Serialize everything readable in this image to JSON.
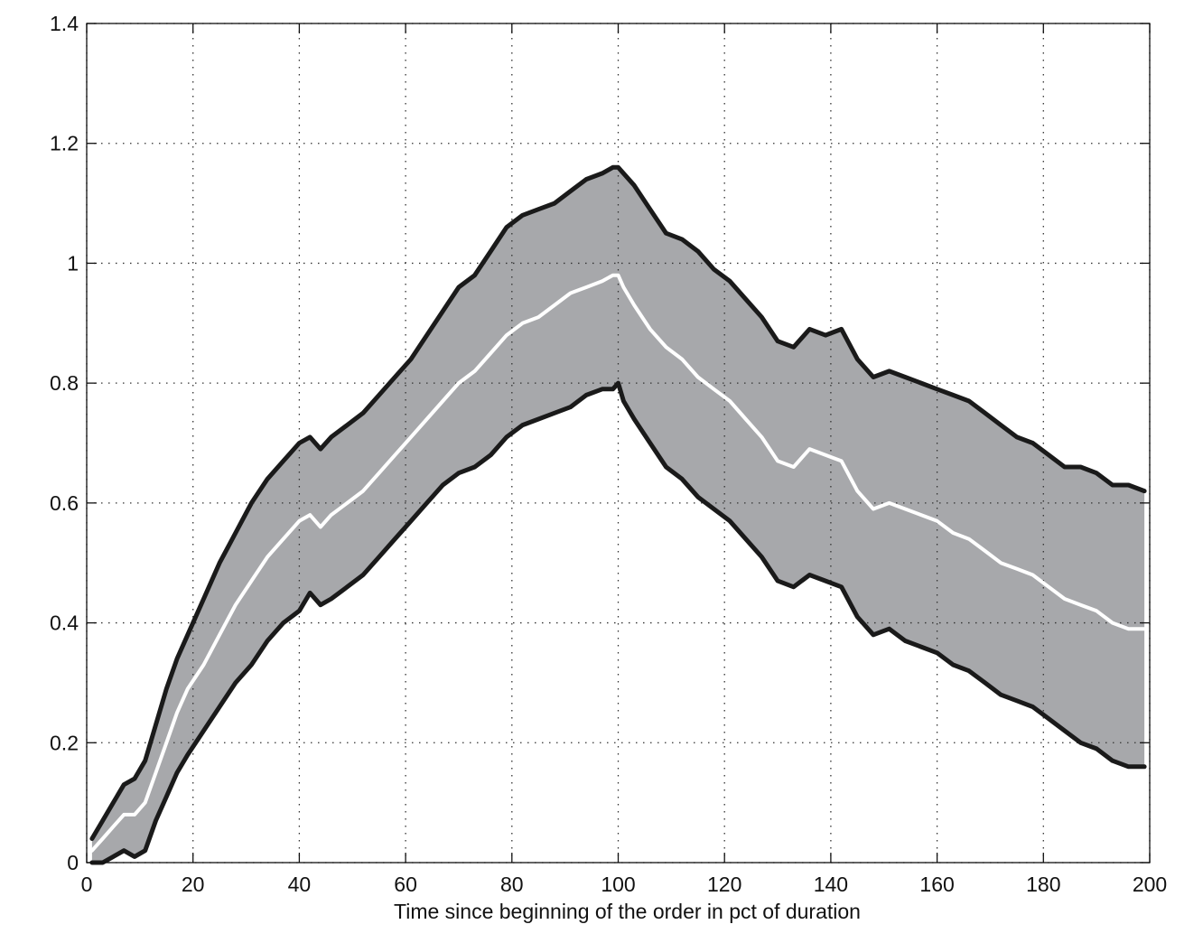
{
  "chart_data": {
    "type": "area",
    "title": "",
    "xlabel": "Time since beginning of the order in pct of duration",
    "ylabel": "",
    "xlim": [
      0,
      200
    ],
    "ylim": [
      0,
      1.4
    ],
    "xticks": [
      0,
      20,
      40,
      60,
      80,
      100,
      120,
      140,
      160,
      180,
      200
    ],
    "yticks": [
      0,
      0.2,
      0.4,
      0.6,
      0.8,
      1,
      1.2,
      1.4
    ],
    "xtick_labels": [
      "0",
      "20",
      "40",
      "60",
      "80",
      "100",
      "120",
      "140",
      "160",
      "180",
      "200"
    ],
    "ytick_labels": [
      "0",
      "0.2",
      "0.4",
      "0.6",
      "0.8",
      "1",
      "1.2",
      "1.4"
    ],
    "grid": true,
    "legend": "none",
    "x": [
      1,
      3,
      5,
      7,
      9,
      11,
      13,
      15,
      17,
      19,
      22,
      25,
      28,
      31,
      34,
      37,
      40,
      42,
      44,
      46,
      49,
      52,
      55,
      58,
      61,
      64,
      67,
      70,
      73,
      76,
      79,
      82,
      85,
      88,
      91,
      94,
      97,
      99,
      100,
      101,
      103,
      106,
      109,
      112,
      115,
      118,
      121,
      124,
      127,
      130,
      133,
      136,
      139,
      142,
      145,
      148,
      151,
      154,
      157,
      160,
      163,
      166,
      169,
      172,
      175,
      178,
      181,
      184,
      187,
      190,
      193,
      196,
      199
    ],
    "colors": {
      "band_fill": "#a7a8ab",
      "band_edge": "#1a1a1a",
      "mean_line": "#ffffff"
    },
    "series": [
      {
        "role": "upper",
        "values": [
          0.04,
          0.07,
          0.1,
          0.13,
          0.14,
          0.17,
          0.23,
          0.29,
          0.34,
          0.38,
          0.44,
          0.5,
          0.55,
          0.6,
          0.64,
          0.67,
          0.7,
          0.71,
          0.69,
          0.71,
          0.73,
          0.75,
          0.78,
          0.81,
          0.84,
          0.88,
          0.92,
          0.96,
          0.98,
          1.02,
          1.06,
          1.08,
          1.09,
          1.1,
          1.12,
          1.14,
          1.15,
          1.16,
          1.16,
          1.15,
          1.13,
          1.09,
          1.05,
          1.04,
          1.02,
          0.99,
          0.97,
          0.94,
          0.91,
          0.87,
          0.86,
          0.89,
          0.88,
          0.89,
          0.84,
          0.81,
          0.82,
          0.81,
          0.8,
          0.79,
          0.78,
          0.77,
          0.75,
          0.73,
          0.71,
          0.7,
          0.68,
          0.66,
          0.66,
          0.65,
          0.63,
          0.63,
          0.62
        ]
      },
      {
        "role": "mean",
        "values": [
          0.02,
          0.04,
          0.06,
          0.08,
          0.08,
          0.1,
          0.15,
          0.2,
          0.25,
          0.29,
          0.33,
          0.38,
          0.43,
          0.47,
          0.51,
          0.54,
          0.57,
          0.58,
          0.56,
          0.58,
          0.6,
          0.62,
          0.65,
          0.68,
          0.71,
          0.74,
          0.77,
          0.8,
          0.82,
          0.85,
          0.88,
          0.9,
          0.91,
          0.93,
          0.95,
          0.96,
          0.97,
          0.98,
          0.98,
          0.96,
          0.93,
          0.89,
          0.86,
          0.84,
          0.81,
          0.79,
          0.77,
          0.74,
          0.71,
          0.67,
          0.66,
          0.69,
          0.68,
          0.67,
          0.62,
          0.59,
          0.6,
          0.59,
          0.58,
          0.57,
          0.55,
          0.54,
          0.52,
          0.5,
          0.49,
          0.48,
          0.46,
          0.44,
          0.43,
          0.42,
          0.4,
          0.39,
          0.39
        ]
      },
      {
        "role": "lower",
        "values": [
          0.0,
          0.0,
          0.01,
          0.02,
          0.01,
          0.02,
          0.07,
          0.11,
          0.15,
          0.18,
          0.22,
          0.26,
          0.3,
          0.33,
          0.37,
          0.4,
          0.42,
          0.45,
          0.43,
          0.44,
          0.46,
          0.48,
          0.51,
          0.54,
          0.57,
          0.6,
          0.63,
          0.65,
          0.66,
          0.68,
          0.71,
          0.73,
          0.74,
          0.75,
          0.76,
          0.78,
          0.79,
          0.79,
          0.8,
          0.77,
          0.74,
          0.7,
          0.66,
          0.64,
          0.61,
          0.59,
          0.57,
          0.54,
          0.51,
          0.47,
          0.46,
          0.48,
          0.47,
          0.46,
          0.41,
          0.38,
          0.39,
          0.37,
          0.36,
          0.35,
          0.33,
          0.32,
          0.3,
          0.28,
          0.27,
          0.26,
          0.24,
          0.22,
          0.2,
          0.19,
          0.17,
          0.16,
          0.16
        ]
      }
    ]
  }
}
